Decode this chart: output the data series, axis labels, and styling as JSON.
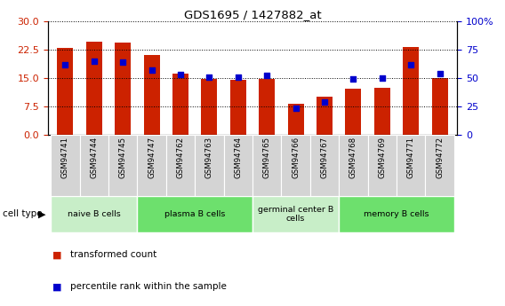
{
  "title": "GDS1695 / 1427882_at",
  "samples": [
    "GSM94741",
    "GSM94744",
    "GSM94745",
    "GSM94747",
    "GSM94762",
    "GSM94763",
    "GSM94764",
    "GSM94765",
    "GSM94766",
    "GSM94767",
    "GSM94768",
    "GSM94769",
    "GSM94771",
    "GSM94772"
  ],
  "transformed_count": [
    23.1,
    24.6,
    24.4,
    21.2,
    16.1,
    14.7,
    14.6,
    14.7,
    8.2,
    10.0,
    12.2,
    12.4,
    23.2,
    15.1
  ],
  "percentile_rank": [
    62,
    65,
    64,
    57,
    53,
    51,
    51,
    52,
    23,
    29,
    49,
    50,
    62,
    54
  ],
  "cell_groups": [
    {
      "label": "naive B cells",
      "start": 0,
      "end": 3,
      "color": "#c8eec8"
    },
    {
      "label": "plasma B cells",
      "start": 3,
      "end": 7,
      "color": "#6de06d"
    },
    {
      "label": "germinal center B\ncells",
      "start": 7,
      "end": 10,
      "color": "#c8eec8"
    },
    {
      "label": "memory B cells",
      "start": 10,
      "end": 14,
      "color": "#6de06d"
    }
  ],
  "left_ylim": [
    0,
    30
  ],
  "right_ylim": [
    0,
    100
  ],
  "left_yticks": [
    0,
    7.5,
    15,
    22.5,
    30
  ],
  "right_yticks": [
    0,
    25,
    50,
    75,
    100
  ],
  "right_yticklabels": [
    "0",
    "25",
    "50",
    "75",
    "100%"
  ],
  "bar_color": "#cc2200",
  "dot_color": "#0000cc",
  "bar_width": 0.55,
  "sample_col_color": "#d4d4d4",
  "left_tick_color": "#cc2200",
  "right_tick_color": "#0000cc"
}
